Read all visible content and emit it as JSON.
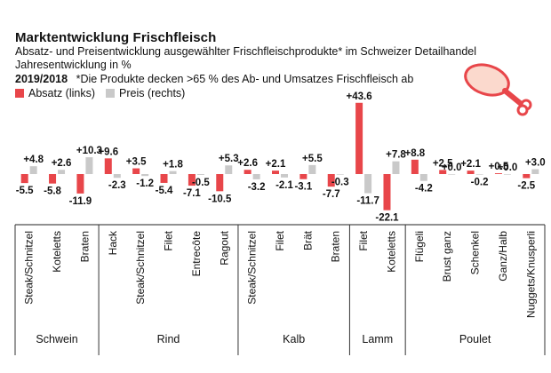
{
  "title": "Marktentwicklung Frischfleisch",
  "subtitle": "Absatz- und Preisentwicklung ausgewählter Frischfleischprodukte* im Schweizer Detailhandel",
  "subtitle2": "Jahresentwicklung  in %",
  "period": "2019/2018",
  "note": "*Die Produkte decken >65 % des Ab- und Umsatzes Frischfleisch ab",
  "icon": "chicken-leg-icon",
  "colors": {
    "absatz": "#e8464a",
    "preis": "#c9c9c9",
    "icon_fill": "#fbd9cd",
    "icon_stroke": "#e8464a"
  },
  "chart_data": {
    "type": "bar",
    "categories": [
      "Steak/Schnitzel",
      "Koteletts",
      "Braten",
      "Hack",
      "Steak/Schnitzel",
      "Filet",
      "Entrecôte",
      "Ragout",
      "Steak/Schnitzel",
      "Filet",
      "Brät",
      "Braten",
      "Filet",
      "Koteletts",
      "Flügeli",
      "Brust ganz",
      "Schenkel",
      "Ganz/Halb",
      "Nuggets/Knusperli"
    ],
    "series": [
      {
        "name": "Absatz (links)",
        "axis": "left",
        "values": [
          -5.5,
          -5.8,
          -11.9,
          9.6,
          3.5,
          -5.4,
          -7.1,
          -10.5,
          2.6,
          2.1,
          -3.1,
          -7.7,
          43.6,
          -22.1,
          8.8,
          2.5,
          2.1,
          0.5,
          -2.5
        ]
      },
      {
        "name": "Preis (rechts)",
        "axis": "right",
        "values": [
          4.8,
          2.6,
          10.3,
          -2.3,
          -1.2,
          1.8,
          -0.5,
          5.3,
          -3.2,
          -2.1,
          5.5,
          -0.3,
          -11.7,
          7.8,
          -4.2,
          0.0,
          -0.2,
          0.0,
          3.0
        ]
      }
    ],
    "labels": {
      "absatz": [
        "-5.5",
        "-5.8",
        "-11.9",
        "+9.6",
        "+3.5",
        "-5.4",
        "-7.1",
        "-10.5",
        "+2.6",
        "+2.1",
        "-3.1",
        "-7.7",
        "+43.6",
        "-22.1",
        "+8.8",
        "+2.5",
        "+2.1",
        "+0.5",
        "-2.5"
      ],
      "preis": [
        "+4.8",
        "+2.6",
        "+10.3",
        "-2.3",
        "-1.2",
        "+1.8",
        "-0.5",
        "+5.3",
        "-3.2",
        "-2.1",
        "+5.5",
        "-0.3",
        "-11.7",
        "+7.8",
        "-4.2",
        "+0.0",
        "-0.2",
        "+0.0",
        "+3.0"
      ]
    },
    "groups": [
      {
        "name": "Schwein",
        "count": 3
      },
      {
        "name": "Rind",
        "count": 5
      },
      {
        "name": "Kalb",
        "count": 4
      },
      {
        "name": "Lamm",
        "count": 2
      },
      {
        "name": "Poulet",
        "count": 5
      }
    ],
    "legend_position": "top-left",
    "grid": false
  }
}
